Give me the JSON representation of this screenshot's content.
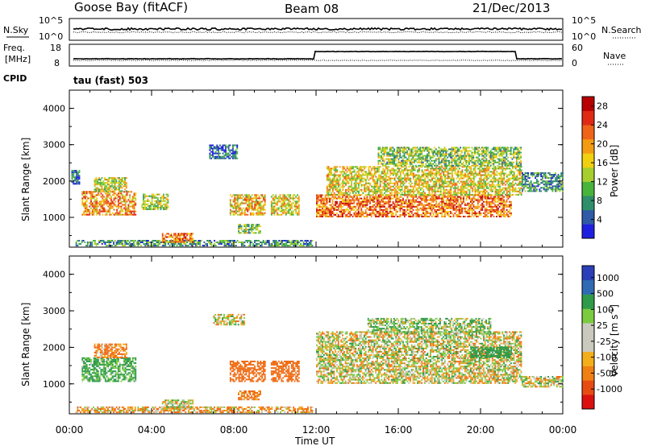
{
  "header": {
    "station": "Goose Bay (fitACF)",
    "beam": "Beam 08",
    "date": "21/Dec/2013"
  },
  "aux_panels": {
    "nsky": {
      "left_label": "N.Sky",
      "right_label": "N.Search",
      "left_ticks": [
        "10^5",
        "10^0"
      ],
      "right_ticks": [
        "10^5",
        "10^0"
      ]
    },
    "freq": {
      "left_label_1": "Freq.",
      "left_label_2": "[MHz]",
      "right_label": "Nave",
      "left_ticks": [
        "18",
        "8"
      ],
      "right_ticks": [
        "60",
        "0"
      ]
    },
    "cpid": {
      "label": "CPID",
      "value": "tau (fast) 503"
    }
  },
  "colors": {
    "axis": "#000000",
    "power_scale": [
      "#1f1fe0",
      "#2e5aa6",
      "#2e8f6a",
      "#49b43c",
      "#a6cf2e",
      "#f0d010",
      "#f49b14",
      "#ef6418",
      "#e02a14",
      "#b80000"
    ],
    "velocity_scale": [
      "#dd1010",
      "#e84b12",
      "#f07f14",
      "#f4ae1a",
      "#c9c9bd",
      "#c9c9bd",
      "#7acb40",
      "#2e9a4a",
      "#2e6bb4",
      "#2a3fb8"
    ]
  },
  "chart_data": [
    {
      "type": "heatmap",
      "name": "power",
      "ylabel": "Slant Range [km]",
      "xlabel": "Time UT",
      "x_ticks": [
        "00:00",
        "04:00",
        "08:00",
        "12:00",
        "16:00",
        "20:00",
        "00:00"
      ],
      "x_range_hours": [
        0,
        24
      ],
      "y_ticks": [
        1000,
        2000,
        3000,
        4000
      ],
      "y_range_km": [
        180,
        4500
      ],
      "colorbar": {
        "label": "Power [dB]",
        "ticks": [
          "4",
          "8",
          "12",
          "16",
          "20",
          "24",
          "28"
        ],
        "range": [
          0,
          30
        ]
      },
      "regions": [
        {
          "t0": 0.1,
          "t1": 0.5,
          "r0": 1900,
          "r1": 2300,
          "v": 6
        },
        {
          "t0": 0.6,
          "t1": 3.2,
          "r0": 1050,
          "r1": 1700,
          "v": 20
        },
        {
          "t0": 1.2,
          "t1": 2.8,
          "r0": 1700,
          "r1": 2100,
          "v": 14
        },
        {
          "t0": 0.3,
          "t1": 11.8,
          "r0": 200,
          "r1": 350,
          "v": 8
        },
        {
          "t0": 4.5,
          "t1": 6.0,
          "r0": 300,
          "r1": 550,
          "v": 22
        },
        {
          "t0": 3.5,
          "t1": 4.8,
          "r0": 1200,
          "r1": 1650,
          "v": 14
        },
        {
          "t0": 7.8,
          "t1": 9.5,
          "r0": 1050,
          "r1": 1600,
          "v": 18
        },
        {
          "t0": 8.2,
          "t1": 9.3,
          "r0": 550,
          "r1": 800,
          "v": 12
        },
        {
          "t0": 9.8,
          "t1": 11.2,
          "r0": 1050,
          "r1": 1600,
          "v": 16
        },
        {
          "t0": 12.0,
          "t1": 21.5,
          "r0": 1000,
          "r1": 1600,
          "v": 22
        },
        {
          "t0": 12.5,
          "t1": 22.0,
          "r0": 1600,
          "r1": 2400,
          "v": 16
        },
        {
          "t0": 15.0,
          "t1": 22.0,
          "r0": 2400,
          "r1": 2900,
          "v": 12
        },
        {
          "t0": 22.0,
          "t1": 24.0,
          "r0": 1700,
          "r1": 2200,
          "v": 8
        },
        {
          "t0": 6.8,
          "t1": 8.2,
          "r0": 2600,
          "r1": 3000,
          "v": 5
        }
      ]
    },
    {
      "type": "heatmap",
      "name": "velocity",
      "ylabel": "Slant Range [km]",
      "xlabel": "Time UT",
      "x_ticks": [
        "00:00",
        "04:00",
        "08:00",
        "12:00",
        "16:00",
        "20:00",
        "00:00"
      ],
      "x_range_hours": [
        0,
        24
      ],
      "y_ticks": [
        1000,
        2000,
        3000,
        4000
      ],
      "y_range_km": [
        180,
        4500
      ],
      "colorbar": {
        "label_main": "Velocity [m s",
        "label_sup": "-1",
        "label_end": "]",
        "ticks": [
          "1000",
          "500",
          "100",
          "25",
          "-25",
          "-100",
          "-500",
          "-1000"
        ],
        "range": [
          -1000,
          1000
        ]
      },
      "regions": [
        {
          "t0": 0.6,
          "t1": 3.2,
          "r0": 1050,
          "r1": 1700,
          "v": 150
        },
        {
          "t0": 1.2,
          "t1": 2.8,
          "r0": 1700,
          "r1": 2100,
          "v": -150
        },
        {
          "t0": 0.3,
          "t1": 11.8,
          "r0": 200,
          "r1": 350,
          "v": -80
        },
        {
          "t0": 4.5,
          "t1": 6.0,
          "r0": 300,
          "r1": 550,
          "v": 0
        },
        {
          "t0": 7.8,
          "t1": 9.5,
          "r0": 1050,
          "r1": 1600,
          "v": -300
        },
        {
          "t0": 9.8,
          "t1": 11.2,
          "r0": 1050,
          "r1": 1600,
          "v": -300
        },
        {
          "t0": 8.2,
          "t1": 9.3,
          "r0": 550,
          "r1": 800,
          "v": -150
        },
        {
          "t0": 12.0,
          "t1": 22.0,
          "r0": 1000,
          "r1": 2400,
          "v": 0
        },
        {
          "t0": 14.5,
          "t1": 20.5,
          "r0": 2400,
          "r1": 2800,
          "v": 60
        },
        {
          "t0": 22.0,
          "t1": 24.0,
          "r0": 900,
          "r1": 1200,
          "v": 0
        },
        {
          "t0": 19.5,
          "t1": 21.5,
          "r0": 1700,
          "r1": 2000,
          "v": 250
        },
        {
          "t0": 7.0,
          "t1": 8.5,
          "r0": 2600,
          "r1": 2900,
          "v": 0
        }
      ]
    }
  ]
}
